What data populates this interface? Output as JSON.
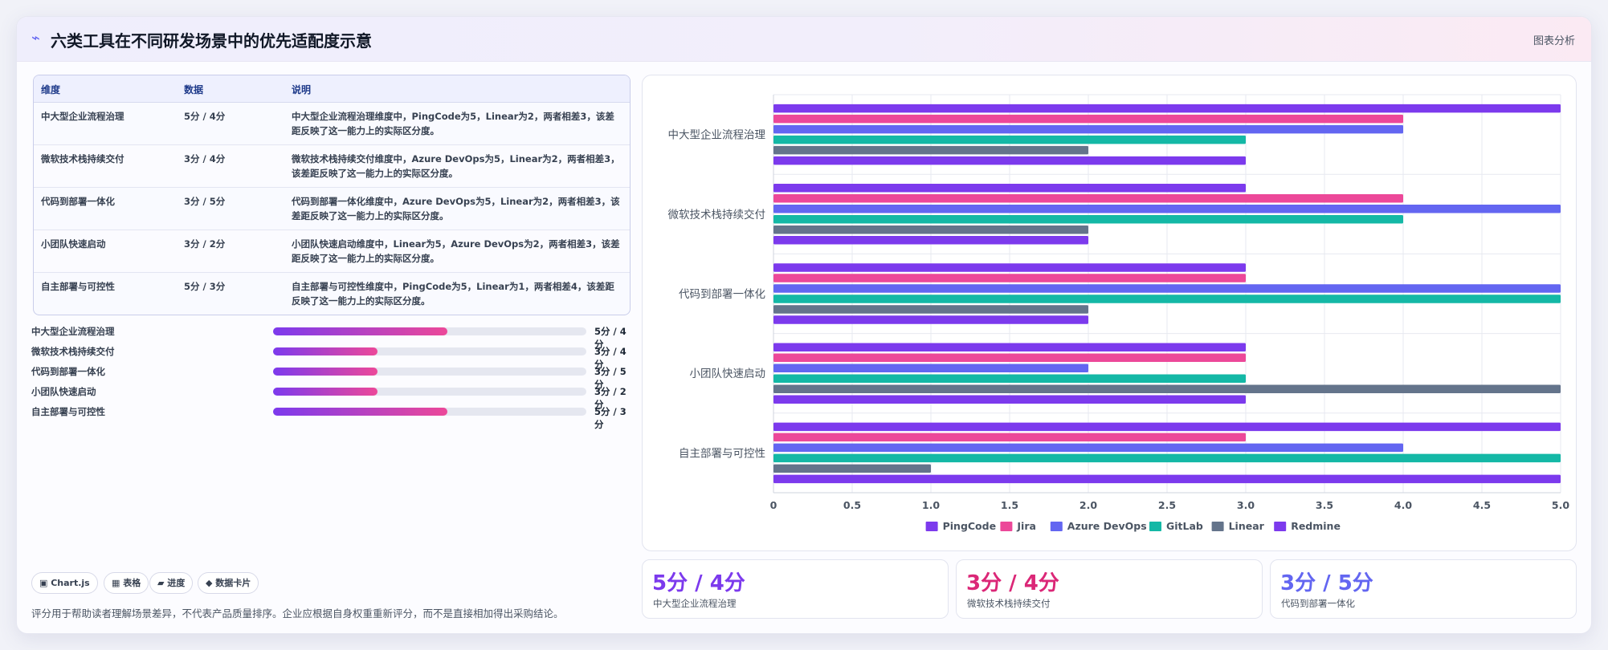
{
  "header": {
    "logo_icon": "chart-trend-icon",
    "title": "六类工具在不同研发场景中的优先适配度示意",
    "tag": "图表分析"
  },
  "table": {
    "headers": [
      "维度",
      "数据",
      "说明"
    ],
    "rows": [
      {
        "dim": "中大型企业流程治理",
        "data": "5分 / 4分",
        "desc": "中大型企业流程治理维度中，PingCode为5，Linear为2，两者相差3，该差距反映了这一能力上的实际区分度。"
      },
      {
        "dim": "微软技术栈持续交付",
        "data": "3分 / 4分",
        "desc": "微软技术栈持续交付维度中，Azure DevOps为5，Linear为2，两者相差3，该差距反映了这一能力上的实际区分度。"
      },
      {
        "dim": "代码到部署一体化",
        "data": "3分 / 5分",
        "desc": "代码到部署一体化维度中，Azure DevOps为5，Linear为2，两者相差3，该差距反映了这一能力上的实际区分度。"
      },
      {
        "dim": "小团队快速启动",
        "data": "3分 / 2分",
        "desc": "小团队快速启动维度中，Linear为5，Azure DevOps为2，两者相差3，该差距反映了这一能力上的实际区分度。"
      },
      {
        "dim": "自主部署与可控性",
        "data": "5分 / 3分",
        "desc": "自主部署与可控性维度中，PingCode为5，Linear为1，两者相差4，该差距反映了这一能力上的实际区分度。"
      }
    ]
  },
  "progress": [
    {
      "label": "中大型企业流程治理",
      "value": "5分 / 4分",
      "fraction": 0.556
    },
    {
      "label": "微软技术栈持续交付",
      "value": "3分 / 4分",
      "fraction": 0.333
    },
    {
      "label": "代码到部署一体化",
      "value": "3分 / 5分",
      "fraction": 0.333
    },
    {
      "label": "小团队快速启动",
      "value": "3分 / 2分",
      "fraction": 0.333
    },
    {
      "label": "自主部署与可控性",
      "value": "5分 / 3分",
      "fraction": 0.556
    }
  ],
  "pills": [
    {
      "label": "▣ Chart.js"
    },
    {
      "label": "▦ 表格"
    },
    {
      "label": "▰ 进度"
    },
    {
      "label": "◆ 数据卡片"
    }
  ],
  "footer_note": "评分用于帮助读者理解场景差异，不代表产品质量排序。企业应根据自身权重重新评分，而不是直接相加得出采购结论。",
  "stats": [
    {
      "value": "5分 / 4分",
      "label": "中大型企业流程治理",
      "color": "#7c3aed"
    },
    {
      "value": "3分 / 4分",
      "label": "微软技术栈持续交付",
      "color": "#db2777"
    },
    {
      "value": "3分 / 5分",
      "label": "代码到部署一体化",
      "color": "#6366f1"
    }
  ],
  "chart_data": {
    "type": "bar",
    "orientation": "horizontal",
    "categories": [
      "中大型企业流程治理",
      "微软技术栈持续交付",
      "代码到部署一体化",
      "小团队快速启动",
      "自主部署与可控性"
    ],
    "series": [
      {
        "name": "PingCode",
        "color": "#7c3aed",
        "values": [
          5,
          3,
          3,
          3,
          5
        ]
      },
      {
        "name": "Jira",
        "color": "#ec4899",
        "values": [
          4,
          4,
          3,
          3,
          3
        ]
      },
      {
        "name": "Azure DevOps",
        "color": "#6366f1",
        "values": [
          4,
          5,
          5,
          2,
          4
        ]
      },
      {
        "name": "GitLab",
        "color": "#14b8a6",
        "values": [
          3,
          4,
          5,
          3,
          5
        ]
      },
      {
        "name": "Linear",
        "color": "#64748b",
        "values": [
          2,
          2,
          2,
          5,
          1
        ]
      },
      {
        "name": "Redmine",
        "color": "#7c3aed",
        "values": [
          3,
          2,
          2,
          3,
          5
        ]
      }
    ],
    "xlim": [
      0,
      5
    ],
    "ticks": [
      "0",
      "0.5",
      "1.0",
      "1.5",
      "2.0",
      "2.5",
      "3.0",
      "3.5",
      "4.0",
      "4.5",
      "5.0"
    ],
    "grid": true,
    "legend": "bottom",
    "title": "",
    "xlabel": "",
    "ylabel": ""
  }
}
